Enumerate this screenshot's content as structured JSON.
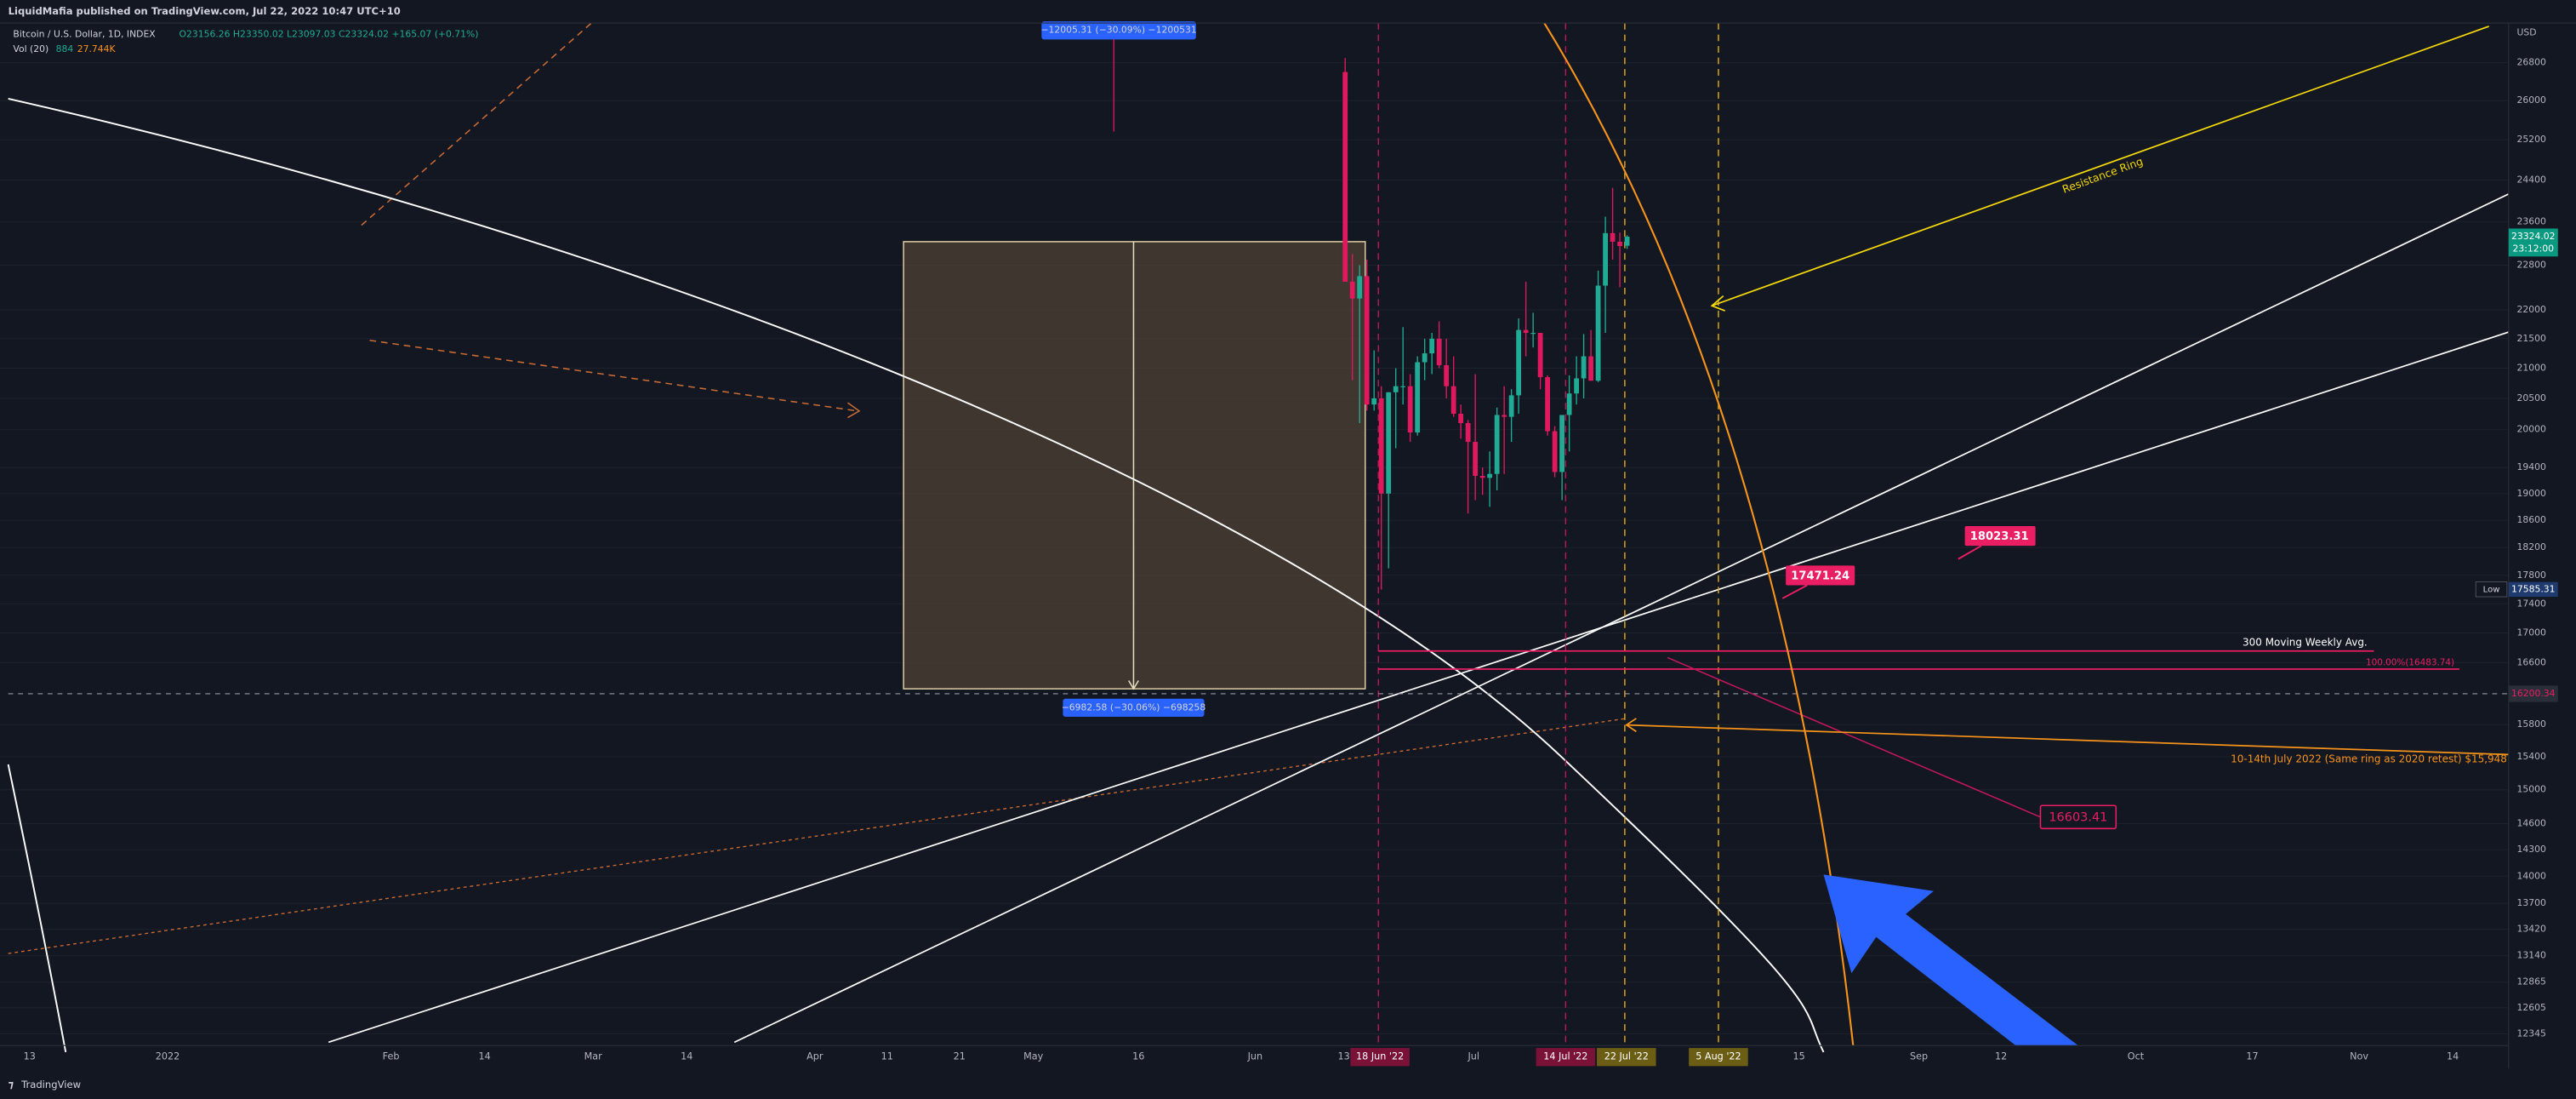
{
  "header": {
    "publisher": "LiquidMafia published on TradingView.com, Jul 22, 2022 10:47 UTC+10",
    "symbol": "Bitcoin / U.S. Dollar, 1D, INDEX",
    "ohlc": "O23156.26 H23350.02 L23097.03 C23324.02 +165.07 (+0.71%)",
    "volume_label": "Vol (20)",
    "volume_value": "884",
    "volume_ma": "27.744K"
  },
  "chart_data": {
    "type": "candlestick",
    "currency": "USD",
    "log_scale": true,
    "up_color": "#22ab94",
    "down_color": "#e0195f",
    "ylim": [
      12230,
      27660
    ],
    "yticks": [
      26800,
      26000,
      25200,
      24400,
      23600,
      22800,
      22000,
      21500,
      21000,
      20500,
      20000,
      19400,
      19000,
      18600,
      18200,
      17800,
      17400,
      17000,
      16600,
      15800,
      15400,
      15000,
      14600,
      14300,
      14000,
      13700,
      13420,
      13140,
      12865,
      12605,
      12345
    ],
    "x_labels": [
      "13",
      "2022",
      "Feb",
      "14",
      "Mar",
      "14",
      "Apr",
      "11",
      "21",
      "May",
      "16",
      "Jun",
      "13",
      "Jul",
      "15",
      "Sep",
      "12",
      "Oct",
      "17",
      "Nov",
      "14"
    ],
    "highlighted_x_labels": [
      "18 Jun '22",
      "14 Jul '22",
      "22 Jul '22",
      "5 Aug '22"
    ],
    "open": [
      26600,
      22500,
      22200,
      22600,
      20400,
      20500,
      19000,
      20600,
      20700,
      20700,
      19950,
      21100,
      21250,
      21500,
      21050,
      20700,
      20250,
      20100,
      19800,
      19270,
      19240,
      19300,
      20230,
      20200,
      20550,
      21650,
      21600,
      21600,
      20850,
      19970,
      19330,
      20230,
      20580,
      20830,
      21200,
      20790,
      22430,
      23390,
      23230,
      23156.26
    ],
    "high": [
      26900,
      23000,
      22800,
      22900,
      21300,
      20700,
      20600,
      21000,
      21700,
      20900,
      21200,
      21500,
      21600,
      21800,
      21500,
      21200,
      20400,
      20150,
      20900,
      19400,
      19650,
      20350,
      20700,
      20650,
      21850,
      22500,
      21950,
      21600,
      20880,
      20050,
      20230,
      20880,
      21200,
      21580,
      21650,
      22700,
      23700,
      24250,
      23400,
      23350.02
    ],
    "low": [
      22600,
      20800,
      20100,
      20300,
      20300,
      17600,
      17900,
      19700,
      20400,
      19800,
      19900,
      20800,
      20900,
      21000,
      20500,
      20200,
      19850,
      18700,
      18900,
      18980,
      18800,
      19050,
      19300,
      19800,
      20250,
      21200,
      21350,
      20650,
      19900,
      19250,
      18900,
      19650,
      20400,
      20500,
      20800,
      20770,
      21600,
      22900,
      22400,
      23097.03
    ],
    "close": [
      22500,
      22200,
      22600,
      20400,
      20500,
      19000,
      20600,
      20700,
      20700,
      19950,
      21100,
      21250,
      21500,
      21050,
      20700,
      20250,
      20100,
      19800,
      19270,
      19240,
      19300,
      20230,
      20200,
      20550,
      21650,
      21600,
      21600,
      20850,
      19970,
      19330,
      20230,
      20580,
      20830,
      21200,
      20790,
      22430,
      23390,
      23230,
      23150,
      23324.02
    ]
  },
  "price_tags": {
    "last_price": "23324.02",
    "countdown": "23:12:00",
    "low_label": "Low",
    "low_price": "17585.31",
    "crosshair_price": "16200.34"
  },
  "annotations": {
    "measure_top": "−12005.31 (−30.09%) −1200531",
    "measure_bottom": "−6982.58 (−30.06%) −698258",
    "resistance": "Resistance Ring",
    "label_a": "17471.24",
    "label_b": "18023.31",
    "label_c": "16603.41",
    "ma_label": "300 Moving Weekly Avg.",
    "fib_label": "100.00%(16483.74)",
    "ring_note": "10-14th July 2022 (Same ring as 2020 retest) $15,948"
  },
  "footer": "TradingView"
}
